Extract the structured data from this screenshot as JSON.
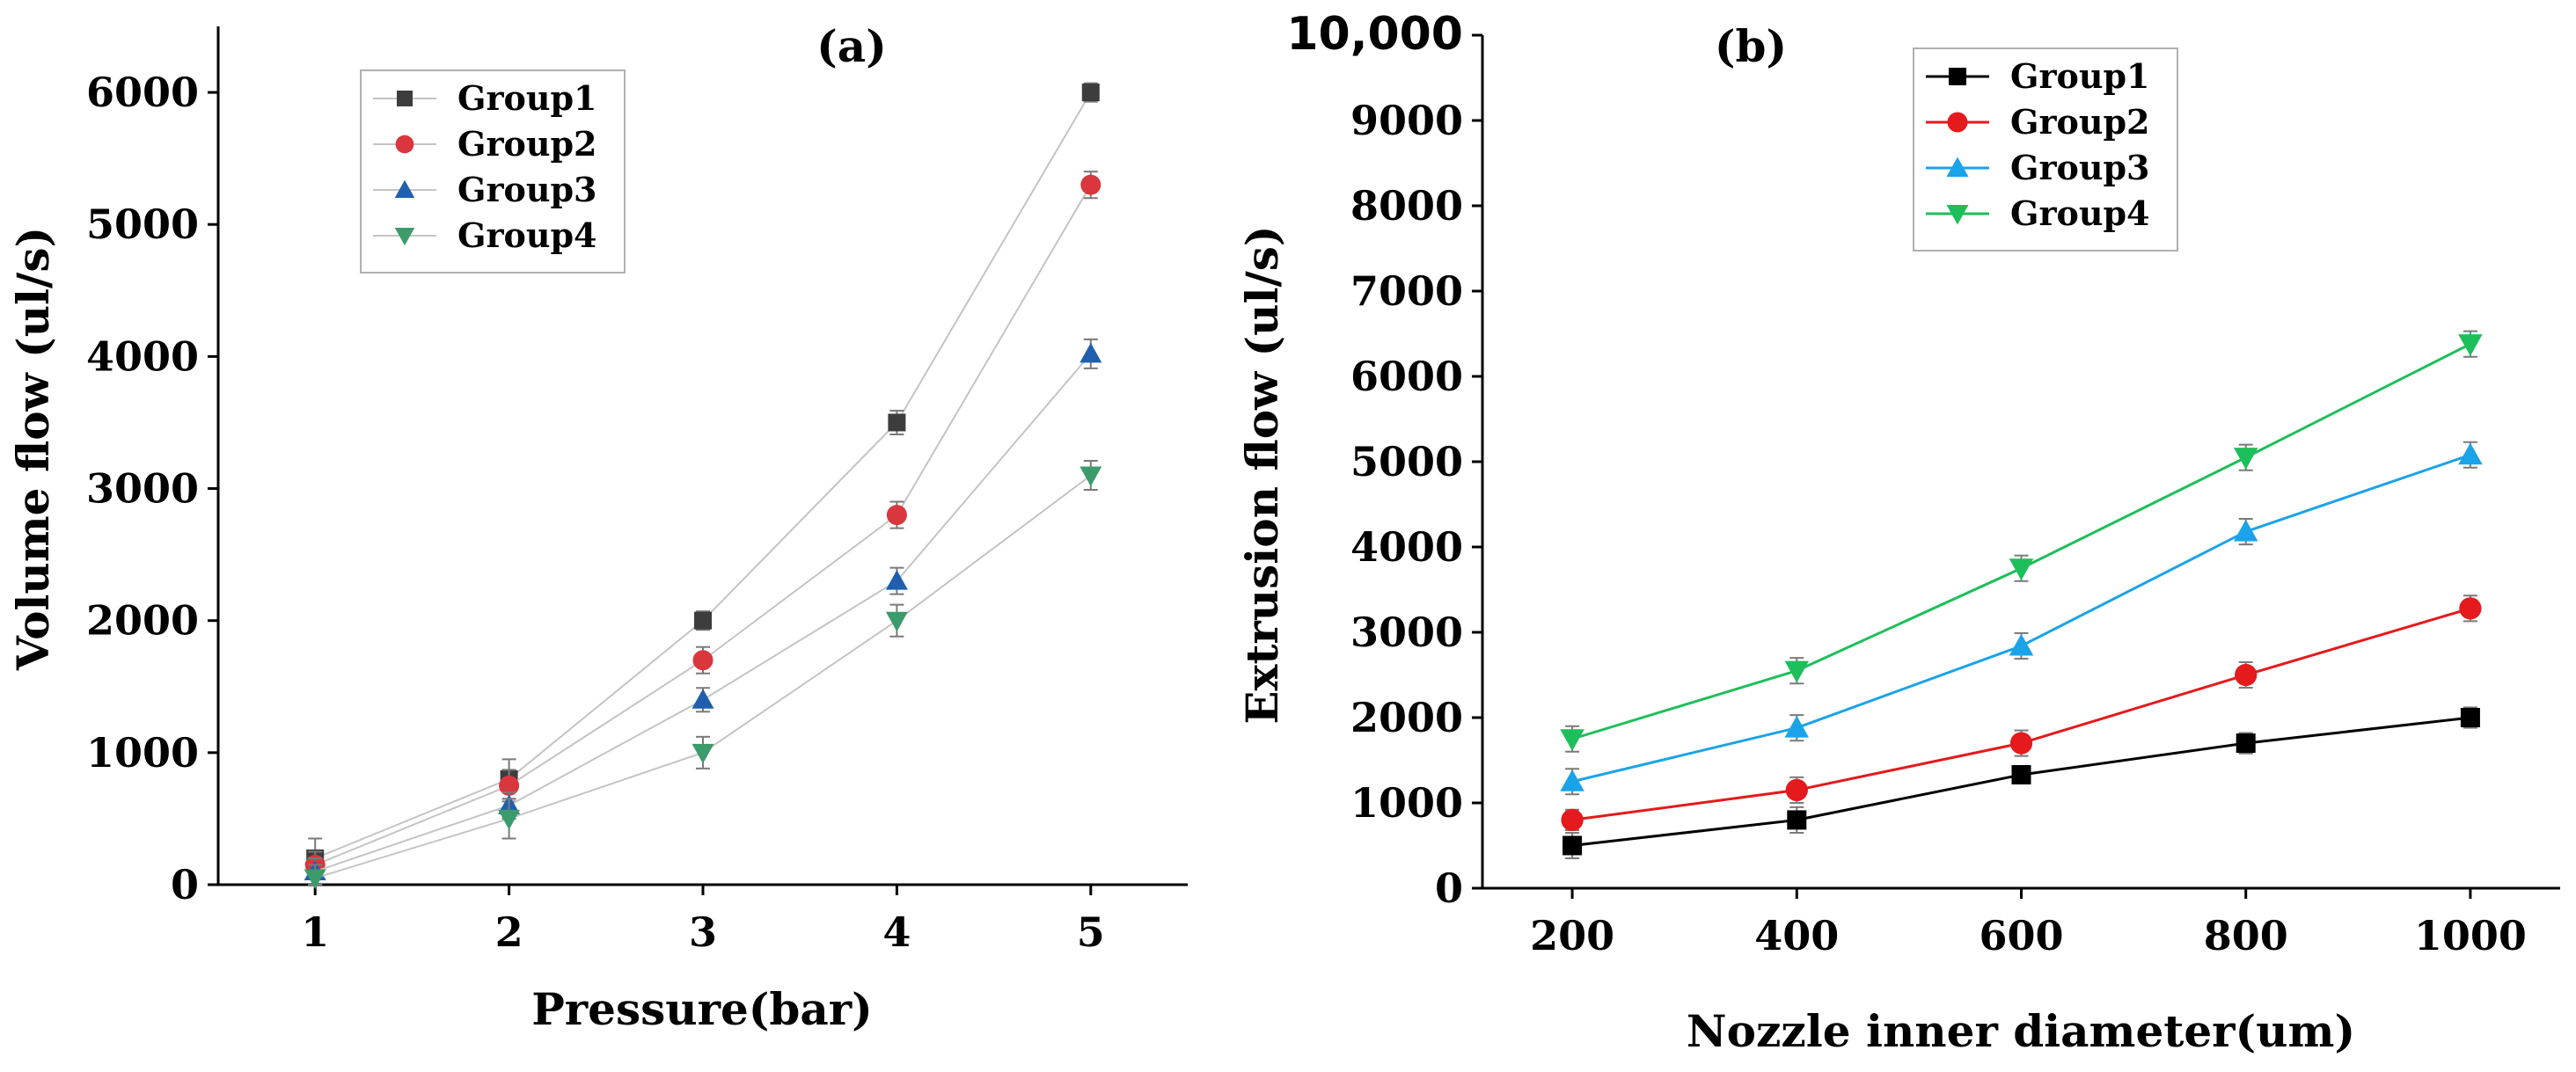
{
  "chart_data": [
    {
      "type": "line",
      "title": "(a)",
      "xlabel": "Pressure(bar)",
      "ylabel": "Volume flow (ul/s)",
      "x": [
        1,
        2,
        3,
        4,
        5
      ],
      "xlim": [
        0.5,
        5.5
      ],
      "ylim": [
        0,
        6500
      ],
      "xticks": [
        1,
        2,
        3,
        4,
        5
      ],
      "yticks": [
        0,
        1000,
        2000,
        3000,
        4000,
        5000,
        6000
      ],
      "ytick_labels": [
        "0",
        "1000",
        "2000",
        "3000",
        "4000",
        "5000",
        "6000"
      ],
      "legend_position": "top-left",
      "series": [
        {
          "name": "Group1",
          "marker": "square",
          "color": "#3d3d3d",
          "line_color": "#c4c4c4",
          "values": [
            200,
            800,
            2000,
            3500,
            6000
          ],
          "errors": [
            150,
            150,
            70,
            90,
            70
          ]
        },
        {
          "name": "Group2",
          "marker": "circle",
          "color": "#d9363e",
          "line_color": "#c4c4c4",
          "values": [
            150,
            750,
            1700,
            2800,
            5300
          ],
          "errors": [
            100,
            120,
            100,
            100,
            100
          ]
        },
        {
          "name": "Group3",
          "marker": "triangle-up",
          "color": "#1f5fae",
          "line_color": "#c4c4c4",
          "values": [
            100,
            600,
            1400,
            2300,
            4020
          ],
          "errors": [
            100,
            100,
            90,
            100,
            110
          ]
        },
        {
          "name": "Group4",
          "marker": "triangle-down",
          "color": "#3c9b6a",
          "line_color": "#c4c4c4",
          "values": [
            50,
            500,
            1000,
            2000,
            3100
          ],
          "errors": [
            100,
            150,
            120,
            120,
            110
          ]
        }
      ]
    },
    {
      "type": "line",
      "title": "(b)",
      "xlabel": "Nozzle inner diameter(um)",
      "ylabel": "Extrusion flow (ul/s)",
      "x": [
        200,
        400,
        600,
        800,
        1000
      ],
      "xlim": [
        120,
        1080
      ],
      "ylim": [
        0,
        10000
      ],
      "xticks": [
        200,
        400,
        600,
        800,
        1000
      ],
      "yticks": [
        0,
        1000,
        2000,
        3000,
        4000,
        5000,
        6000,
        7000,
        8000,
        9000,
        10000
      ],
      "ytick_labels": [
        "0",
        "1000",
        "2000",
        "3000",
        "4000",
        "5000",
        "6000",
        "7000",
        "8000",
        "9000",
        "10,000"
      ],
      "legend_position": "top-left",
      "series": [
        {
          "name": "Group1",
          "marker": "square",
          "color": "#000000",
          "line_color": "#000000",
          "values": [
            500,
            800,
            1330,
            1700,
            2000
          ],
          "errors": [
            150,
            150,
            100,
            120,
            120
          ]
        },
        {
          "name": "Group2",
          "marker": "circle",
          "color": "#e41a1c",
          "line_color": "#e41a1c",
          "values": [
            800,
            1150,
            1700,
            2500,
            3280
          ],
          "errors": [
            120,
            150,
            150,
            150,
            150
          ]
        },
        {
          "name": "Group3",
          "marker": "triangle-up",
          "color": "#1aa3e8",
          "line_color": "#1aa3e8",
          "values": [
            1250,
            1880,
            2840,
            4180,
            5080
          ],
          "errors": [
            150,
            150,
            150,
            150,
            150
          ]
        },
        {
          "name": "Group4",
          "marker": "triangle-down",
          "color": "#1dbf5a",
          "line_color": "#1dbf5a",
          "values": [
            1750,
            2550,
            3750,
            5050,
            6380
          ],
          "errors": [
            150,
            150,
            150,
            150,
            150
          ]
        }
      ]
    }
  ]
}
